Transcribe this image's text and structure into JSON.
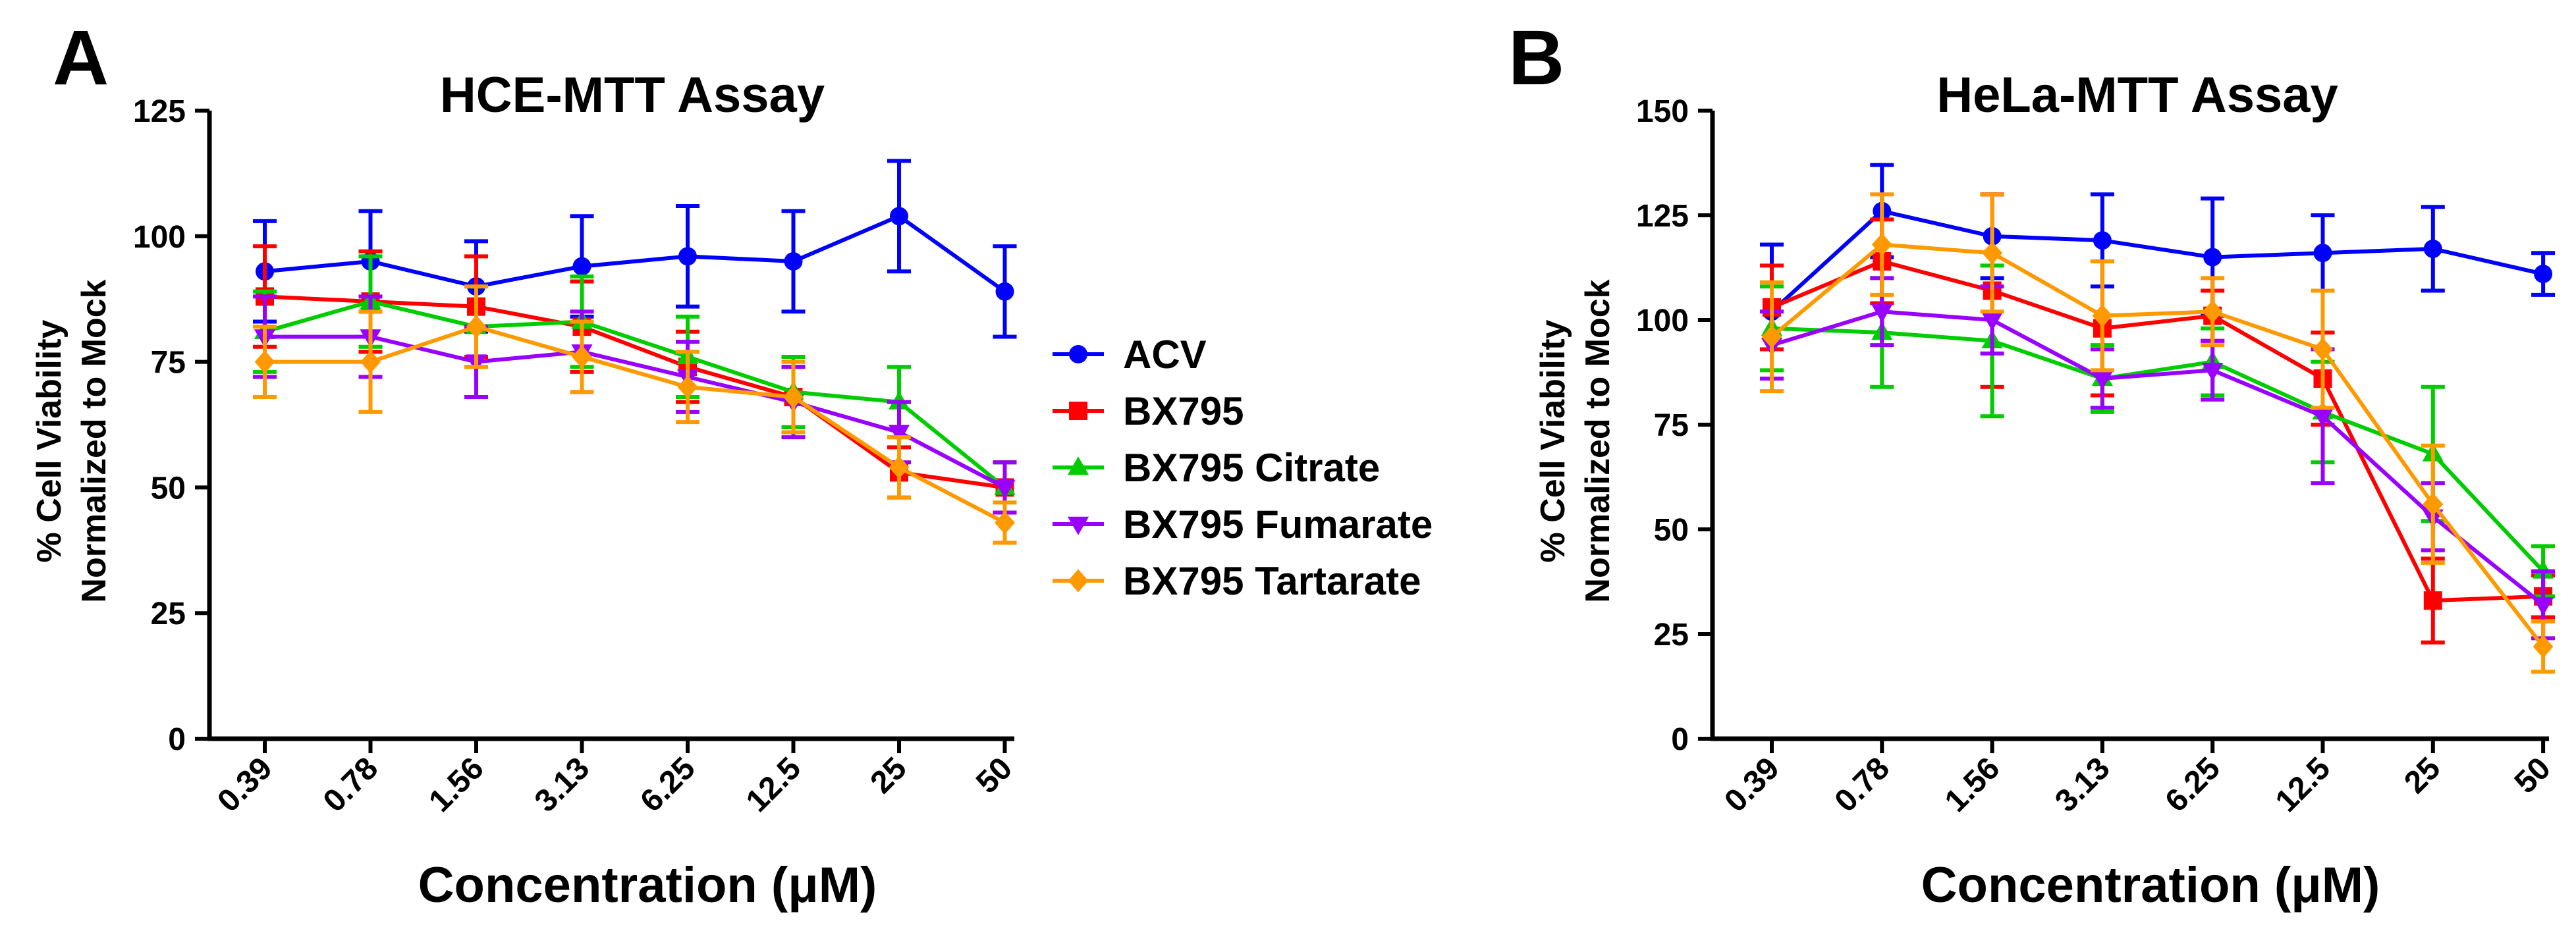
{
  "chart_data": [
    {
      "panel": "A",
      "type": "line",
      "title": "HCE-MTT  Assay",
      "xlabel": "Concentration (μM)",
      "ylabel": [
        "% Cell Viability",
        "Normalized to Mock"
      ],
      "categories": [
        "0.39",
        "0.78",
        "1.56",
        "3.13",
        "6.25",
        "12.5",
        "25",
        "50"
      ],
      "ylim": [
        0,
        125
      ],
      "yticks": [
        "0",
        "25",
        "50",
        "75",
        "100",
        "125"
      ],
      "series": [
        {
          "name": "ACV",
          "color": "#0000ff",
          "marker": "circle",
          "values": [
            93,
            95,
            90,
            94,
            96,
            95,
            104,
            89
          ],
          "errors": [
            10,
            10,
            9,
            10,
            10,
            10,
            11,
            9
          ]
        },
        {
          "name": "BX795",
          "color": "#ff0000",
          "marker": "square",
          "values": [
            88,
            87,
            86,
            82,
            74,
            68,
            53,
            50
          ],
          "errors": [
            10,
            10,
            10,
            9,
            7,
            6,
            5,
            5
          ]
        },
        {
          "name": "BX795 Citrate",
          "color": "#00cc00",
          "marker": "triangle-up",
          "values": [
            81,
            87,
            82,
            83,
            76,
            69,
            67,
            50
          ],
          "errors": [
            8,
            9,
            8,
            9,
            8,
            7,
            7,
            5
          ]
        },
        {
          "name": "BX795 Fumarate",
          "color": "#9900ff",
          "marker": "triangle-down",
          "values": [
            80,
            80,
            75,
            77,
            72,
            67,
            61,
            50
          ],
          "errors": [
            8,
            8,
            7,
            8,
            7,
            7,
            6,
            5
          ]
        },
        {
          "name": "BX795 Tartarate",
          "color": "#ff9900",
          "marker": "diamond",
          "values": [
            75,
            75,
            82,
            76,
            70,
            68,
            54,
            43
          ],
          "errors": [
            7,
            10,
            8,
            7,
            7,
            7,
            6,
            4
          ]
        }
      ]
    },
    {
      "panel": "B",
      "type": "line",
      "title": "HeLa-MTT  Assay",
      "xlabel": "Concentration (μM)",
      "ylabel": [
        "% Cell Viability",
        "Normalized to Mock"
      ],
      "categories": [
        "0.39",
        "0.78",
        "1.56",
        "3.13",
        "6.25",
        "12.5",
        "25",
        "50"
      ],
      "ylim": [
        0,
        150
      ],
      "yticks": [
        "0",
        "25",
        "50",
        "75",
        "100",
        "125",
        "150"
      ],
      "series": [
        {
          "name": "ACV",
          "color": "#0000ff",
          "marker": "circle",
          "values": [
            102,
            126,
            120,
            119,
            115,
            116,
            117,
            111
          ],
          "errors": [
            16,
            11,
            10,
            11,
            14,
            9,
            10,
            5
          ]
        },
        {
          "name": "BX795",
          "color": "#ff0000",
          "marker": "square",
          "values": [
            103,
            114,
            107,
            98,
            101,
            86,
            33,
            34
          ],
          "errors": [
            10,
            10,
            23,
            16,
            6,
            11,
            10,
            5
          ]
        },
        {
          "name": "BX795 Citrate",
          "color": "#00cc00",
          "marker": "triangle-up",
          "values": [
            98,
            97,
            95,
            86,
            90,
            78,
            68,
            40
          ],
          "errors": [
            10,
            13,
            18,
            8,
            8,
            12,
            16,
            6
          ]
        },
        {
          "name": "BX795 Fumarate",
          "color": "#9900ff",
          "marker": "triangle-down",
          "values": [
            94,
            102,
            100,
            86,
            88,
            77,
            53,
            32
          ],
          "errors": [
            8,
            8,
            8,
            7,
            7,
            16,
            8,
            8
          ]
        },
        {
          "name": "BX795 Tartarate",
          "color": "#ff9900",
          "marker": "diamond",
          "values": [
            96,
            118,
            116,
            101,
            102,
            93,
            56,
            22
          ],
          "errors": [
            13,
            12,
            14,
            13,
            8,
            14,
            14,
            6
          ]
        }
      ]
    }
  ],
  "legend": {
    "entries": [
      {
        "name": "ACV",
        "color": "#0000ff",
        "marker": "circle"
      },
      {
        "name": "BX795",
        "color": "#ff0000",
        "marker": "square"
      },
      {
        "name": "BX795 Citrate",
        "color": "#00cc00",
        "marker": "triangle-up"
      },
      {
        "name": "BX795 Fumarate",
        "color": "#9900ff",
        "marker": "triangle-down"
      },
      {
        "name": "BX795 Tartarate",
        "color": "#ff9900",
        "marker": "diamond"
      }
    ]
  }
}
